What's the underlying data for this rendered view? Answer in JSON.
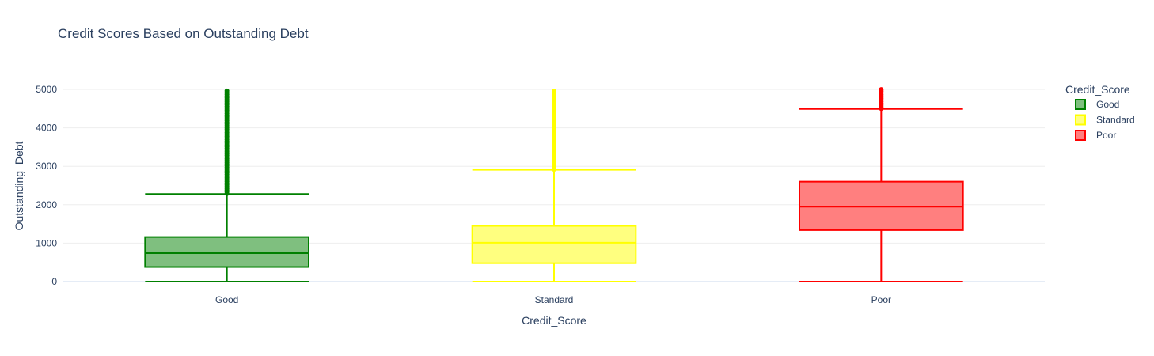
{
  "chart_data": {
    "type": "box",
    "title": "Credit Scores Based on Outstanding Debt",
    "xlabel": "Credit_Score",
    "ylabel": "Outstanding_Debt",
    "ylim": [
      0,
      5000
    ],
    "yticks": [
      0,
      1000,
      2000,
      3000,
      4000,
      5000
    ],
    "yticklabels": [
      "0",
      "1000",
      "2000",
      "3000",
      "4000",
      "5000"
    ],
    "grid": true,
    "legend": {
      "title": "Credit_Score",
      "placement": "top-right"
    },
    "categories": [
      "Good",
      "Standard",
      "Poor"
    ],
    "series": [
      {
        "name": "Good",
        "color": "#008000",
        "fill": "#7fbf7f",
        "min": 0,
        "q1": 380,
        "median": 740,
        "q3": 1160,
        "whisker_high": 2280,
        "outliers_from": 2290,
        "outliers_to": 4998
      },
      {
        "name": "Standard",
        "color": "#ffff00",
        "fill": "#ffff7f",
        "min": 0,
        "q1": 480,
        "median": 1010,
        "q3": 1450,
        "whisker_high": 2910,
        "outliers_from": 2920,
        "outliers_to": 4998
      },
      {
        "name": "Poor",
        "color": "#ff0000",
        "fill": "#ff7f7f",
        "min": 0,
        "q1": 1340,
        "median": 1950,
        "q3": 2600,
        "whisker_high": 4490,
        "outliers_from": 4500,
        "outliers_to": 4998
      }
    ]
  }
}
